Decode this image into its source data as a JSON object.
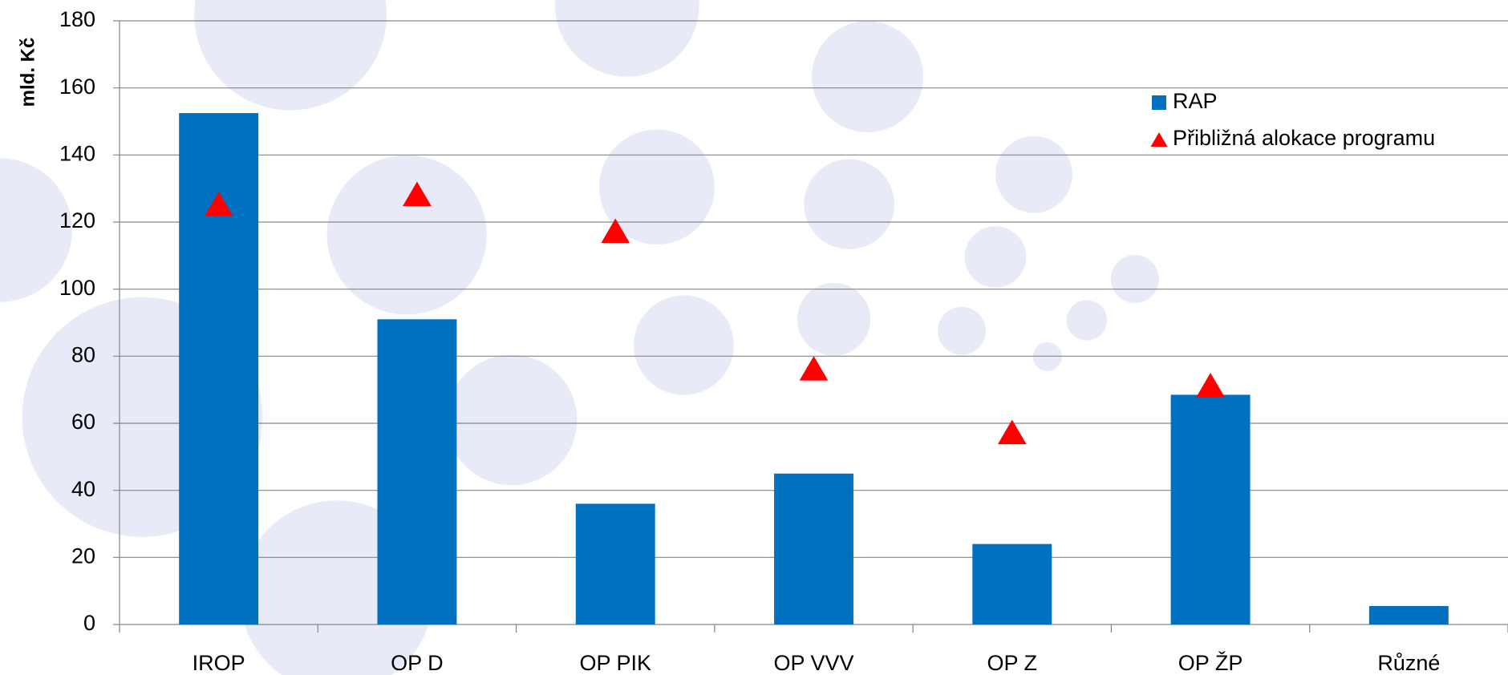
{
  "chart_data": {
    "type": "bar",
    "y_label": "mld. Kč",
    "categories": [
      "IROP",
      "OP D",
      "OP PIK",
      "OP VVV",
      "OP Z",
      "OP ŽP",
      "Různé"
    ],
    "series": [
      {
        "name": "RAP",
        "mark": "bar",
        "color": "#0070c0",
        "values": [
          152.5,
          91,
          36,
          45,
          24,
          68.5,
          5.5
        ]
      },
      {
        "name": "Přibližná alokace programu",
        "mark": "triangle",
        "color": "#ff0000",
        "values": [
          125,
          128,
          117,
          76,
          57,
          71,
          null
        ]
      }
    ],
    "ylim": [
      0,
      180
    ],
    "yticks": [
      0,
      20,
      40,
      60,
      80,
      100,
      120,
      140,
      160,
      180
    ],
    "grid": true,
    "legend": "top-right"
  }
}
